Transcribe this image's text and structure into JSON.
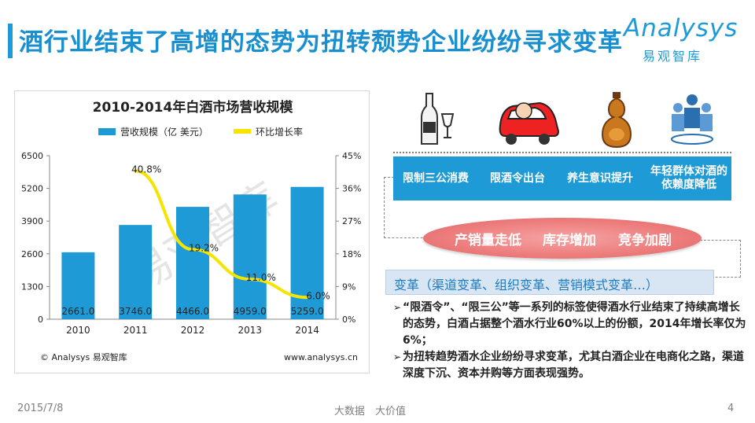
{
  "header": {
    "title": "酒行业结束了高增的态势为扭转颓势企业纷纷寻求变革",
    "logo_main": "Analysys",
    "logo_sub": "易观智库"
  },
  "chart_data": {
    "type": "bar",
    "title": "2010-2014年白酒市场营收规模",
    "categories": [
      "2010",
      "2011",
      "2012",
      "2013",
      "2014"
    ],
    "series": [
      {
        "name": "营收规模（亿 美元）",
        "kind": "bar",
        "values": [
          2661.0,
          3746.0,
          4466.0,
          4959.0,
          5259.0
        ],
        "labels": [
          "2661.0",
          "3746.0",
          "4466.0",
          "4959.0",
          "5259.0"
        ],
        "color": "#1e9bd7"
      },
      {
        "name": "环比增长率",
        "kind": "line",
        "axis": "right",
        "values": [
          null,
          40.8,
          19.2,
          11.0,
          6.0
        ],
        "labels": [
          "",
          "40.8%",
          "19.2%",
          "11.0%",
          "6.0%"
        ],
        "color": "#f5e400"
      }
    ],
    "y_left": {
      "ticks": [
        "0",
        "1300",
        "2600",
        "3900",
        "5200",
        "6500"
      ],
      "range": [
        0,
        6500
      ]
    },
    "y_right": {
      "ticks": [
        "0%",
        "9%",
        "18%",
        "27%",
        "36%",
        "45%"
      ],
      "range": [
        0,
        45
      ]
    },
    "source": "© Analysys 易观智库",
    "url": "www.analysys.cn",
    "watermark": "易观智库"
  },
  "icons": [
    {
      "name": "liquor-bottle-glasses-icon"
    },
    {
      "name": "drunk-driver-car-icon"
    },
    {
      "name": "gourd-bottle-icon"
    },
    {
      "name": "people-group-icon"
    }
  ],
  "factors": [
    "限制三公消费",
    "限酒令出台",
    "养生意识提升",
    "年轻群体对酒的依赖度降低"
  ],
  "effects": [
    "产销量走低",
    "库存增加",
    "竞争加剧"
  ],
  "change": "变革（渠道变革、组织变革、营销模式变革…）",
  "bullets": [
    {
      "mark": "➢",
      "text": "“限酒令”、“限三公”等一系列的标签使得酒水行业结束了持续高增长的态势，白酒占据整个酒水行业60%以上的份额，2014年增长率仅为6%；"
    },
    {
      "mark": "➢",
      "text": "为扭转趋势酒水企业纷纷寻求变革，尤其白酒企业在电商化之路，渠道深度下沉、资本并购等方面表现强势。"
    }
  ],
  "footer": {
    "date": "2015/7/8",
    "slogan": "大数据　大价值",
    "page": "4"
  }
}
